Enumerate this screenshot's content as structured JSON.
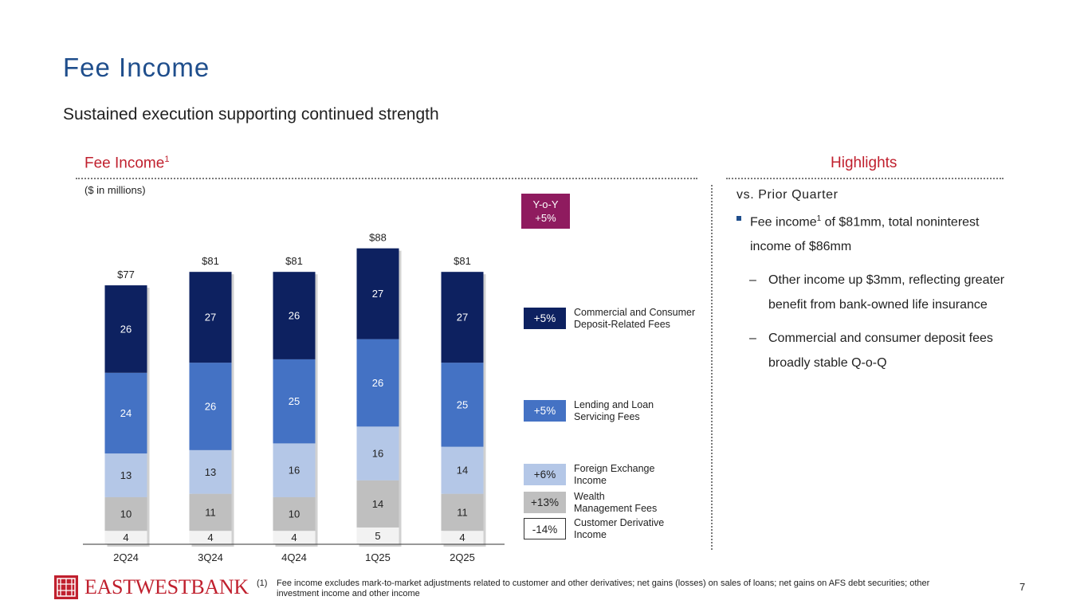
{
  "page": {
    "title": "Fee Income",
    "subtitle": "Sustained execution supporting continued strength",
    "page_number": "7"
  },
  "left_section": {
    "heading": "Fee Income",
    "heading_sup": "1",
    "units": "($ in millions)"
  },
  "yoy_box": {
    "line1": "Y-o-Y",
    "line2": "+5%"
  },
  "legend": [
    {
      "pct": "+5%",
      "label_line1": "Commercial and Consumer",
      "label_line2": "Deposit-Related Fees",
      "color": "#0d2160",
      "text_color": "#ffffff"
    },
    {
      "pct": "+5%",
      "label_line1": "Lending and Loan",
      "label_line2": "Servicing Fees",
      "color": "#4472c4",
      "text_color": "#ffffff"
    },
    {
      "pct": "+6%",
      "label_line1": "Foreign Exchange",
      "label_line2": "Income",
      "color": "#b4c7e7",
      "text_color": "#222222"
    },
    {
      "pct": "+13%",
      "label_line1": "Wealth",
      "label_line2": "Management Fees",
      "color": "#bfbfbf",
      "text_color": "#222222"
    },
    {
      "pct": "-14%",
      "label_line1": "Customer Derivative",
      "label_line2": "Income",
      "color": "#ffffff",
      "text_color": "#222222"
    }
  ],
  "chart_data": {
    "type": "bar",
    "stacked": true,
    "title": "Fee Income",
    "units": "($ in millions)",
    "categories": [
      "2Q24",
      "3Q24",
      "4Q24",
      "1Q25",
      "2Q25"
    ],
    "totals": [
      "$77",
      "$81",
      "$81",
      "$88",
      "$81"
    ],
    "series": [
      {
        "name": "Customer Derivative Income",
        "values": [
          4,
          4,
          4,
          5,
          4
        ],
        "color": "#f2f2f2",
        "label_color": "#222222"
      },
      {
        "name": "Wealth Management Fees",
        "values": [
          10,
          11,
          10,
          14,
          11
        ],
        "color": "#bfbfbf",
        "label_color": "#222222"
      },
      {
        "name": "Foreign Exchange Income",
        "values": [
          13,
          13,
          16,
          16,
          14
        ],
        "color": "#b4c7e7",
        "label_color": "#222222"
      },
      {
        "name": "Lending and Loan Servicing Fees",
        "values": [
          24,
          26,
          25,
          26,
          25
        ],
        "color": "#4472c4",
        "label_color": "#ffffff"
      },
      {
        "name": "Commercial and Consumer Deposit-Related Fees",
        "values": [
          26,
          27,
          26,
          27,
          27
        ],
        "color": "#0d2160",
        "label_color": "#ffffff"
      }
    ],
    "ylim": [
      0,
      90
    ],
    "xlabel": "",
    "ylabel": ""
  },
  "highlights": {
    "heading": "Highlights",
    "vs": "vs. Prior Quarter",
    "bullet_pre": "Fee income",
    "bullet_sup": "1",
    "bullet_post": " of $81mm, total noninterest income of $86mm",
    "dash": "–",
    "sub1": "Other income up $3mm, reflecting greater benefit from bank-owned life insurance",
    "sub2": "Commercial and consumer deposit fees broadly stable Q-o-Q"
  },
  "logo": {
    "text": "EASTWESTBANK"
  },
  "footnote": {
    "num": "(1)",
    "text": "Fee income excludes mark-to-market adjustments related to customer and other derivatives; net gains (losses) on sales of loans; net gains on AFS debt securities; other investment income and other income"
  }
}
